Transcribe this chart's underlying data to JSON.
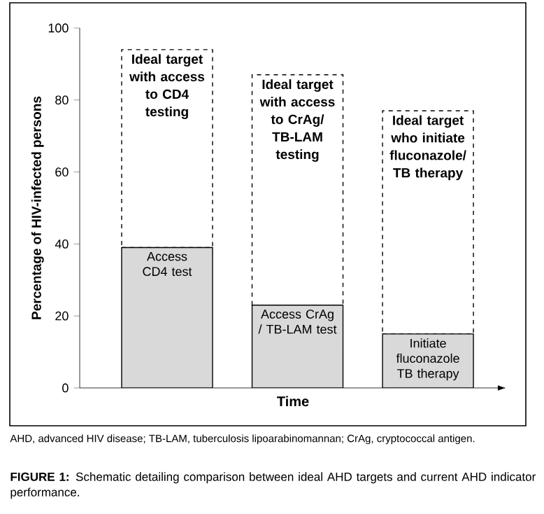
{
  "chart_data": {
    "type": "bar",
    "stacked": true,
    "categories": [
      null,
      null,
      null
    ],
    "xlabel": "Time",
    "ylabel": "Percentage of HIV-infected persons",
    "ylim": [
      0,
      100
    ],
    "yticks": [
      0,
      20,
      40,
      60,
      80,
      100
    ],
    "tick_labels": "y",
    "series": [
      {
        "color": "#d9d9d9",
        "values": [
          39,
          23,
          15
        ],
        "value_labels": [
          "Access CD4 test",
          "Access CrAg / TB-LAM test",
          "Initiate fluconazole TB therapy"
        ]
      },
      {
        "color": "#ffffff",
        "line_style": "dashed",
        "values": [
          55,
          64,
          62
        ],
        "value_labels": [
          "Ideal target with access to CD4 testing",
          "Ideal target with access to CrAg/ TB-LAM testing",
          "Ideal target who initiate fluconazole/ TB therapy"
        ]
      }
    ],
    "annotations": [
      "AHD, advanced HIV disease; TB-LAM, tuberculosis lipoarabinomannan; CrAg, cryptococcal antigen.",
      "**FIGURE 1:** Schematic detailing comparison between ideal AHD targets and current AHD indicator performance."
    ]
  }
}
